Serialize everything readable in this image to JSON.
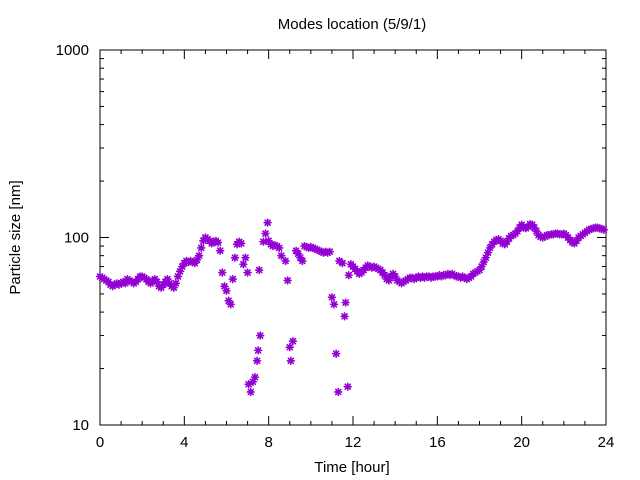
{
  "chart_data": {
    "type": "scatter",
    "title": "Modes location (5/9/1)",
    "xlabel": "Time [hour]",
    "ylabel": "Particle size [nm]",
    "xlim": [
      0,
      24
    ],
    "ylim": [
      10,
      1000
    ],
    "yscale": "log",
    "xticks": [
      0,
      4,
      8,
      12,
      16,
      20,
      24
    ],
    "xtick_labels": [
      "0",
      "4",
      "8",
      "12",
      "16",
      "20",
      "24"
    ],
    "yticks": [
      10,
      100,
      1000
    ],
    "ytick_labels": [
      "10",
      "100",
      "1000"
    ],
    "grid": false,
    "legend": false,
    "marker_color": "#9400d3",
    "marker": "asterisk",
    "series": [
      {
        "points": [
          [
            0.0,
            62
          ],
          [
            0.1,
            61
          ],
          [
            0.2,
            60
          ],
          [
            0.3,
            59
          ],
          [
            0.4,
            58
          ],
          [
            0.5,
            56
          ],
          [
            0.6,
            55
          ],
          [
            0.7,
            56
          ],
          [
            0.8,
            57
          ],
          [
            0.9,
            56
          ],
          [
            1.0,
            57
          ],
          [
            1.1,
            58
          ],
          [
            1.2,
            57
          ],
          [
            1.3,
            60
          ],
          [
            1.4,
            59
          ],
          [
            1.5,
            58
          ],
          [
            1.6,
            57
          ],
          [
            1.7,
            58
          ],
          [
            1.8,
            60
          ],
          [
            1.9,
            62
          ],
          [
            2.0,
            62
          ],
          [
            2.1,
            61
          ],
          [
            2.2,
            60
          ],
          [
            2.3,
            58
          ],
          [
            2.4,
            57
          ],
          [
            2.5,
            59
          ],
          [
            2.6,
            60
          ],
          [
            2.7,
            58
          ],
          [
            2.8,
            55
          ],
          [
            2.9,
            54
          ],
          [
            3.0,
            56
          ],
          [
            3.1,
            58
          ],
          [
            3.2,
            60
          ],
          [
            3.3,
            57
          ],
          [
            3.4,
            55
          ],
          [
            3.5,
            54
          ],
          [
            3.6,
            57
          ],
          [
            3.7,
            62
          ],
          [
            3.8,
            66
          ],
          [
            3.9,
            70
          ],
          [
            4.0,
            73
          ],
          [
            4.1,
            75
          ],
          [
            4.2,
            74
          ],
          [
            4.3,
            75
          ],
          [
            4.4,
            74
          ],
          [
            4.5,
            73
          ],
          [
            4.6,
            76
          ],
          [
            4.7,
            80
          ],
          [
            4.8,
            88
          ],
          [
            4.9,
            96
          ],
          [
            5.0,
            100
          ],
          [
            5.1,
            98
          ],
          [
            5.2,
            96
          ],
          [
            5.3,
            93
          ],
          [
            5.4,
            95
          ],
          [
            5.5,
            96
          ],
          [
            5.6,
            94
          ],
          [
            5.7,
            85
          ],
          [
            5.8,
            65
          ],
          [
            5.9,
            55
          ],
          [
            6.0,
            52
          ],
          [
            6.1,
            46
          ],
          [
            6.2,
            44
          ],
          [
            6.3,
            60
          ],
          [
            6.4,
            78
          ],
          [
            6.5,
            92
          ],
          [
            6.6,
            95
          ],
          [
            6.7,
            93
          ],
          [
            6.8,
            72
          ],
          [
            6.9,
            78
          ],
          [
            7.0,
            65
          ],
          [
            7.05,
            16.5
          ],
          [
            7.15,
            15
          ],
          [
            7.25,
            17
          ],
          [
            7.35,
            18
          ],
          [
            7.45,
            22
          ],
          [
            7.5,
            25
          ],
          [
            7.6,
            30
          ],
          [
            7.55,
            67
          ],
          [
            7.75,
            95
          ],
          [
            7.85,
            105
          ],
          [
            7.95,
            120
          ],
          [
            8.0,
            96
          ],
          [
            8.1,
            92
          ],
          [
            8.2,
            90
          ],
          [
            8.3,
            91
          ],
          [
            8.4,
            90
          ],
          [
            8.5,
            88
          ],
          [
            8.6,
            80
          ],
          [
            8.8,
            75
          ],
          [
            8.9,
            59
          ],
          [
            9.0,
            26
          ],
          [
            9.05,
            22
          ],
          [
            9.15,
            28
          ],
          [
            9.3,
            85
          ],
          [
            9.4,
            82
          ],
          [
            9.5,
            78
          ],
          [
            9.6,
            75
          ],
          [
            9.7,
            90
          ],
          [
            9.8,
            89
          ],
          [
            9.9,
            88
          ],
          [
            10.0,
            89
          ],
          [
            10.1,
            88
          ],
          [
            10.2,
            87
          ],
          [
            10.3,
            86
          ],
          [
            10.4,
            85
          ],
          [
            10.5,
            84
          ],
          [
            10.6,
            83
          ],
          [
            10.7,
            84
          ],
          [
            10.8,
            83
          ],
          [
            10.9,
            84
          ],
          [
            11.0,
            48
          ],
          [
            11.1,
            44
          ],
          [
            11.2,
            24
          ],
          [
            11.3,
            15
          ],
          [
            11.35,
            75
          ],
          [
            11.5,
            73
          ],
          [
            11.6,
            38
          ],
          [
            11.65,
            45
          ],
          [
            11.75,
            16
          ],
          [
            11.8,
            63
          ],
          [
            11.9,
            72
          ],
          [
            12.0,
            70
          ],
          [
            12.1,
            68
          ],
          [
            12.2,
            66
          ],
          [
            12.3,
            64
          ],
          [
            12.4,
            65
          ],
          [
            12.5,
            67
          ],
          [
            12.6,
            69
          ],
          [
            12.7,
            71
          ],
          [
            12.8,
            70
          ],
          [
            12.9,
            69
          ],
          [
            13.0,
            70
          ],
          [
            13.1,
            69
          ],
          [
            13.2,
            68
          ],
          [
            13.3,
            67
          ],
          [
            13.4,
            65
          ],
          [
            13.5,
            63
          ],
          [
            13.6,
            60
          ],
          [
            13.7,
            59
          ],
          [
            13.8,
            62
          ],
          [
            13.9,
            64
          ],
          [
            14.0,
            62
          ],
          [
            14.1,
            59
          ],
          [
            14.2,
            58
          ],
          [
            14.3,
            57
          ],
          [
            14.4,
            58
          ],
          [
            14.5,
            59
          ],
          [
            14.6,
            60
          ],
          [
            14.7,
            61
          ],
          [
            14.8,
            61
          ],
          [
            14.9,
            60
          ],
          [
            15.0,
            61
          ],
          [
            15.1,
            62
          ],
          [
            15.2,
            61
          ],
          [
            15.3,
            62
          ],
          [
            15.4,
            61
          ],
          [
            15.5,
            62
          ],
          [
            15.6,
            62
          ],
          [
            15.7,
            61
          ],
          [
            15.8,
            62
          ],
          [
            15.9,
            62
          ],
          [
            16.0,
            62
          ],
          [
            16.1,
            63
          ],
          [
            16.2,
            62
          ],
          [
            16.3,
            63
          ],
          [
            16.4,
            63
          ],
          [
            16.5,
            64
          ],
          [
            16.6,
            63
          ],
          [
            16.7,
            64
          ],
          [
            16.8,
            63
          ],
          [
            16.9,
            62
          ],
          [
            17.0,
            62
          ],
          [
            17.1,
            61
          ],
          [
            17.2,
            62
          ],
          [
            17.3,
            61
          ],
          [
            17.4,
            60
          ],
          [
            17.5,
            61
          ],
          [
            17.6,
            62
          ],
          [
            17.7,
            64
          ],
          [
            17.8,
            65
          ],
          [
            17.9,
            66
          ],
          [
            18.0,
            67
          ],
          [
            18.1,
            70
          ],
          [
            18.2,
            74
          ],
          [
            18.3,
            78
          ],
          [
            18.4,
            83
          ],
          [
            18.5,
            88
          ],
          [
            18.6,
            92
          ],
          [
            18.7,
            95
          ],
          [
            18.8,
            97
          ],
          [
            18.9,
            98
          ],
          [
            19.0,
            96
          ],
          [
            19.1,
            93
          ],
          [
            19.2,
            92
          ],
          [
            19.3,
            95
          ],
          [
            19.4,
            99
          ],
          [
            19.5,
            102
          ],
          [
            19.6,
            103
          ],
          [
            19.7,
            105
          ],
          [
            19.8,
            108
          ],
          [
            19.9,
            113
          ],
          [
            20.0,
            117
          ],
          [
            20.1,
            113
          ],
          [
            20.2,
            112
          ],
          [
            20.3,
            114
          ],
          [
            20.4,
            118
          ],
          [
            20.5,
            117
          ],
          [
            20.6,
            113
          ],
          [
            20.7,
            108
          ],
          [
            20.8,
            103
          ],
          [
            20.9,
            101
          ],
          [
            21.0,
            100
          ],
          [
            21.1,
            101
          ],
          [
            21.2,
            103
          ],
          [
            21.3,
            103
          ],
          [
            21.4,
            104
          ],
          [
            21.5,
            104
          ],
          [
            21.6,
            105
          ],
          [
            21.7,
            105
          ],
          [
            21.8,
            104
          ],
          [
            21.9,
            104
          ],
          [
            22.0,
            105
          ],
          [
            22.1,
            103
          ],
          [
            22.2,
            100
          ],
          [
            22.3,
            97
          ],
          [
            22.4,
            94
          ],
          [
            22.5,
            93
          ],
          [
            22.6,
            96
          ],
          [
            22.7,
            100
          ],
          [
            22.8,
            102
          ],
          [
            22.9,
            104
          ],
          [
            23.0,
            106
          ],
          [
            23.1,
            108
          ],
          [
            23.2,
            110
          ],
          [
            23.3,
            111
          ],
          [
            23.4,
            112
          ],
          [
            23.5,
            113
          ],
          [
            23.6,
            113
          ],
          [
            23.7,
            112
          ],
          [
            23.8,
            111
          ],
          [
            23.9,
            110
          ]
        ]
      }
    ]
  }
}
